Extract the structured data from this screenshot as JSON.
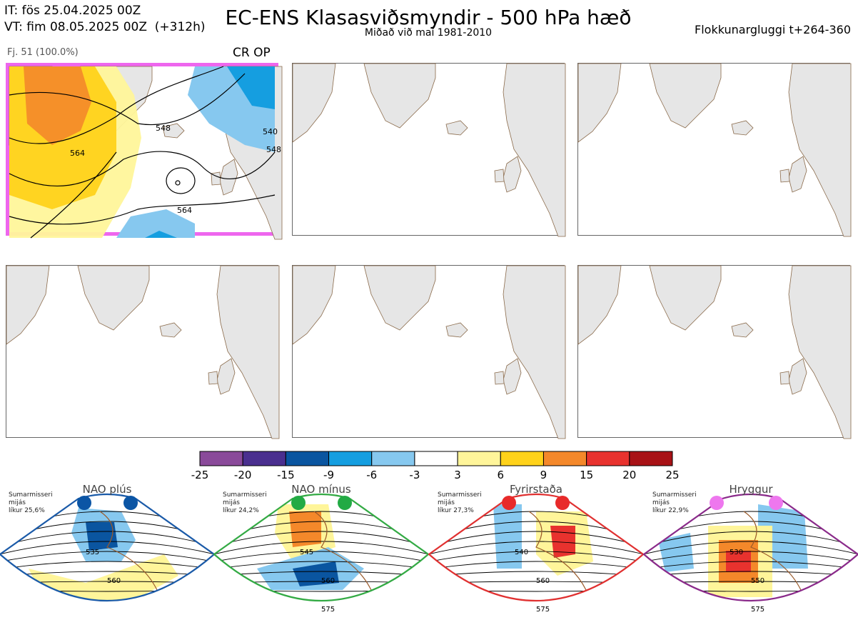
{
  "header": {
    "it_line": "IT: fös 25.04.2025 00Z",
    "vt_line": "VT: fim 08.05.2025 00Z  (+312h)",
    "title": "EC-ENS Klasasviðsmyndir - 500 hPa hæð",
    "subtitle": "Miðað við maí 1981-2010",
    "window": "Flokkunargluggi t+264-360"
  },
  "member": {
    "label": "Fj. 51 (100.0%)",
    "tag": "CR OP"
  },
  "map_panel": {
    "contour_labels": [
      "548",
      "564",
      "564",
      "540",
      "548"
    ]
  },
  "colorbar": {
    "colors": [
      "#8a4a9a",
      "#4a2f8f",
      "#0a55a0",
      "#159ee0",
      "#86c8ef",
      "#ffffff",
      "#fff59a",
      "#ffd21a",
      "#f4882a",
      "#e8322e",
      "#a81216"
    ],
    "labels": [
      "-25",
      "-20",
      "-15",
      "-9",
      "-6",
      "-3",
      "3",
      "6",
      "9",
      "15",
      "20",
      "25"
    ]
  },
  "regimes": [
    {
      "name": "NAO plús",
      "season": "Sumarmisseri",
      "period": "mijás",
      "prob": "líkur 25,6%",
      "color": "#1a5aa8",
      "dot": "#0b55a5",
      "contours": [
        "535",
        "560"
      ]
    },
    {
      "name": "NAO mínus",
      "season": "Sumarmisseri",
      "period": "mijás",
      "prob": "líkur 24,2%",
      "color": "#33aa44",
      "dot": "#22aa44",
      "contours": [
        "545",
        "560",
        "575"
      ]
    },
    {
      "name": "Fyrirstaða",
      "season": "Sumarmisseri",
      "period": "mijás",
      "prob": "líkur 27,3%",
      "color": "#e03030",
      "dot": "#e82a2a",
      "contours": [
        "540",
        "560",
        "575"
      ]
    },
    {
      "name": "Hryggur",
      "season": "Sumarmisseri",
      "period": "mijás",
      "prob": "líkur 22,9%",
      "color": "#8a2a8a",
      "dot": "#ee77ee",
      "contours": [
        "530",
        "550",
        "575"
      ]
    }
  ]
}
